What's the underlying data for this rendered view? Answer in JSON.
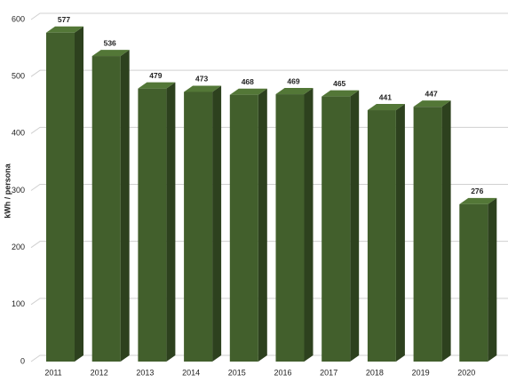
{
  "chart_data": {
    "type": "bar3d",
    "y_label": "kWh / persona",
    "categories": [
      "2011",
      "2012",
      "2013",
      "2014",
      "2015",
      "2016",
      "2017",
      "2018",
      "2019",
      "2020"
    ],
    "values": [
      577,
      536,
      479,
      473,
      468,
      469,
      465,
      441,
      447,
      276
    ],
    "color": "#425f2c",
    "ylim": [
      0,
      600
    ],
    "yticks": [
      0,
      100,
      200,
      300,
      400,
      500,
      600
    ],
    "grid": true
  }
}
